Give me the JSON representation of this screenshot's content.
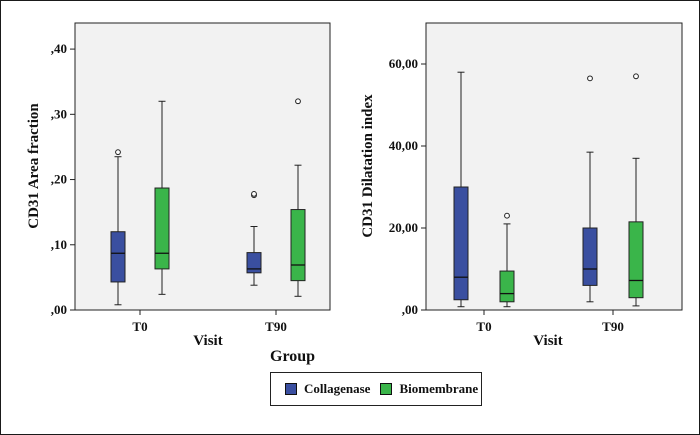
{
  "legend": {
    "title": "Group",
    "items": [
      {
        "label": "Collagenase",
        "color": "#3a4fa0"
      },
      {
        "label": "Biomembrane",
        "color": "#3ab54a"
      }
    ]
  },
  "chart_data": [
    {
      "type": "boxplot",
      "ylabel": "CD31 Area fraction",
      "xlabel": "Visit",
      "categories": [
        "T0",
        "T90"
      ],
      "ylim": [
        0,
        0.44
      ],
      "yticks": [
        0.0,
        0.1,
        0.2,
        0.3,
        0.4
      ],
      "ytick_labels": [
        ",00",
        ",10",
        ",20",
        ",30",
        ",40"
      ],
      "series": [
        {
          "name": "Collagenase",
          "boxes": [
            {
              "min": 0.008,
              "q1": 0.043,
              "median": 0.087,
              "q3": 0.12,
              "max": 0.235,
              "outliers": [
                0.242
              ]
            },
            {
              "min": 0.038,
              "q1": 0.057,
              "median": 0.063,
              "q3": 0.088,
              "max": 0.128,
              "outliers": [
                0.176,
                0.178
              ]
            }
          ]
        },
        {
          "name": "Biomembrane",
          "boxes": [
            {
              "min": 0.024,
              "q1": 0.063,
              "median": 0.087,
              "q3": 0.187,
              "max": 0.32,
              "outliers": []
            },
            {
              "min": 0.021,
              "q1": 0.045,
              "median": 0.069,
              "q3": 0.154,
              "max": 0.222,
              "outliers": [
                0.32
              ]
            }
          ]
        }
      ]
    },
    {
      "type": "boxplot",
      "ylabel": "CD31 Dilatation index",
      "xlabel": "Visit",
      "categories": [
        "T0",
        "T90"
      ],
      "ylim": [
        0,
        70
      ],
      "yticks": [
        0,
        20,
        40,
        60
      ],
      "ytick_labels": [
        ",00",
        "20,00",
        "40,00",
        "60,00"
      ],
      "series": [
        {
          "name": "Collagenase",
          "boxes": [
            {
              "min": 0.8,
              "q1": 2.5,
              "median": 8.0,
              "q3": 30.0,
              "max": 58.0,
              "outliers": []
            },
            {
              "min": 2.0,
              "q1": 6.0,
              "median": 10.0,
              "q3": 20.0,
              "max": 38.5,
              "outliers": [
                56.5
              ]
            }
          ]
        },
        {
          "name": "Biomembrane",
          "boxes": [
            {
              "min": 0.8,
              "q1": 2.0,
              "median": 4.0,
              "q3": 9.5,
              "max": 21.0,
              "outliers": [
                23.0
              ]
            },
            {
              "min": 1.0,
              "q1": 3.0,
              "median": 7.2,
              "q3": 21.5,
              "max": 37.0,
              "outliers": [
                57.0
              ]
            }
          ]
        }
      ]
    }
  ]
}
